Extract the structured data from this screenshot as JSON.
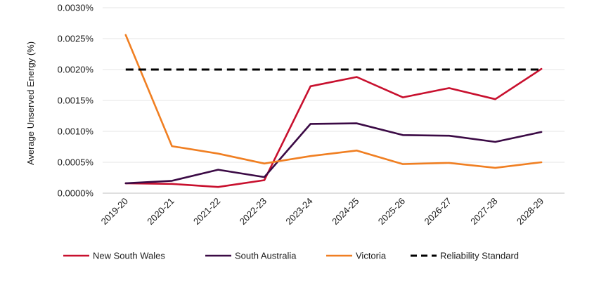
{
  "chart_data": {
    "type": "line",
    "title": "",
    "xlabel": "",
    "ylabel": "Average Unserved Energy (%)",
    "ylim": [
      0,
      0.003
    ],
    "yticks": [
      "0.0000%",
      "0.0005%",
      "0.0010%",
      "0.0015%",
      "0.0020%",
      "0.0025%",
      "0.0030%"
    ],
    "ytick_values": [
      0,
      0.0005,
      0.001,
      0.0015,
      0.002,
      0.0025,
      0.003
    ],
    "grid": "horizontal",
    "legend_position": "bottom",
    "categories": [
      "2019-20",
      "2020-21",
      "2021-22",
      "2022-23",
      "2023-24",
      "2024-25",
      "2025-26",
      "2026-27",
      "2027-28",
      "2028-29"
    ],
    "series": [
      {
        "name": "New South Wales",
        "color": "#c8102e",
        "dash": false,
        "values": [
          0.00016,
          0.00015,
          0.0001,
          0.00021,
          0.00173,
          0.00188,
          0.00155,
          0.0017,
          0.00152,
          0.00201
        ]
      },
      {
        "name": "South Australia",
        "color": "#3b0a45",
        "dash": false,
        "values": [
          0.00016,
          0.0002,
          0.00038,
          0.00026,
          0.00112,
          0.00113,
          0.00094,
          0.00093,
          0.00083,
          0.00099
        ]
      },
      {
        "name": "Victoria",
        "color": "#f07f22",
        "dash": false,
        "values": [
          0.00256,
          0.00076,
          0.00064,
          0.00048,
          0.0006,
          0.00069,
          0.00047,
          0.00049,
          0.00041,
          0.0005
        ]
      },
      {
        "name": "Reliability Standard",
        "color": "#000000",
        "dash": true,
        "values": [
          0.002,
          0.002,
          0.002,
          0.002,
          0.002,
          0.002,
          0.002,
          0.002,
          0.002,
          0.002
        ]
      }
    ]
  }
}
